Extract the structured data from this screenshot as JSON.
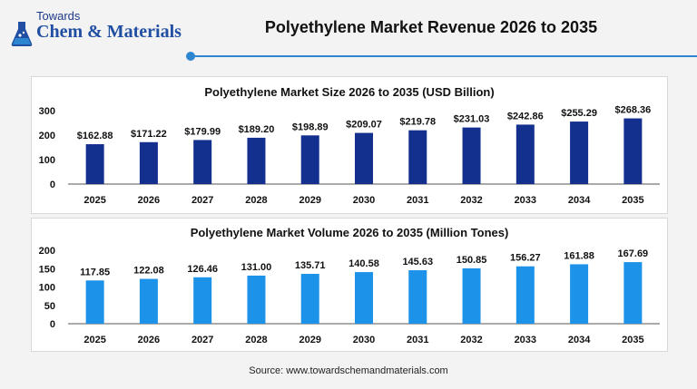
{
  "header": {
    "logo_top": "Towards",
    "logo_main": "Chem & Materials",
    "title": "Polyethylene Market Revenue 2026 to 2035",
    "accent_color": "#2e86d1",
    "logo_icon": "flask-icon"
  },
  "chart_data": [
    {
      "type": "bar",
      "title": "Polyethylene Market Size 2026 to 2035 (USD Billion)",
      "categories": [
        "2025",
        "2026",
        "2027",
        "2028",
        "2029",
        "2030",
        "2031",
        "2032",
        "2033",
        "2034",
        "2035"
      ],
      "values": [
        162.88,
        171.22,
        179.99,
        189.2,
        198.89,
        209.07,
        219.78,
        231.03,
        242.86,
        255.29,
        268.36
      ],
      "labels": [
        "$162.88",
        "$171.22",
        "$179.99",
        "$189.20",
        "$198.89",
        "$209.07",
        "$219.78",
        "$231.03",
        "$242.86",
        "$255.29",
        "$268.36"
      ],
      "ylim": [
        0,
        300
      ],
      "yticks": [
        "0",
        "100",
        "200",
        "300"
      ],
      "ytick_values": [
        0,
        100,
        200,
        300
      ],
      "color": "#14308f",
      "grid": false
    },
    {
      "type": "bar",
      "title": "Polyethylene Market Volume 2026 to 2035 (Million Tones)",
      "categories": [
        "2025",
        "2026",
        "2027",
        "2028",
        "2029",
        "2030",
        "2031",
        "2032",
        "2033",
        "2034",
        "2035"
      ],
      "values": [
        117.85,
        122.08,
        126.46,
        131.0,
        135.71,
        140.58,
        145.63,
        150.85,
        156.27,
        161.88,
        167.69
      ],
      "labels": [
        "117.85",
        "122.08",
        "126.46",
        "131.00",
        "135.71",
        "140.58",
        "145.63",
        "150.85",
        "156.27",
        "161.88",
        "167.69"
      ],
      "ylim": [
        0,
        200
      ],
      "yticks": [
        "0",
        "50",
        "100",
        "150",
        "200"
      ],
      "ytick_values": [
        0,
        50,
        100,
        150,
        200
      ],
      "color": "#1c93e8",
      "grid": false
    }
  ],
  "footer": {
    "source": "Source: www.towardschemandmaterials.com"
  }
}
